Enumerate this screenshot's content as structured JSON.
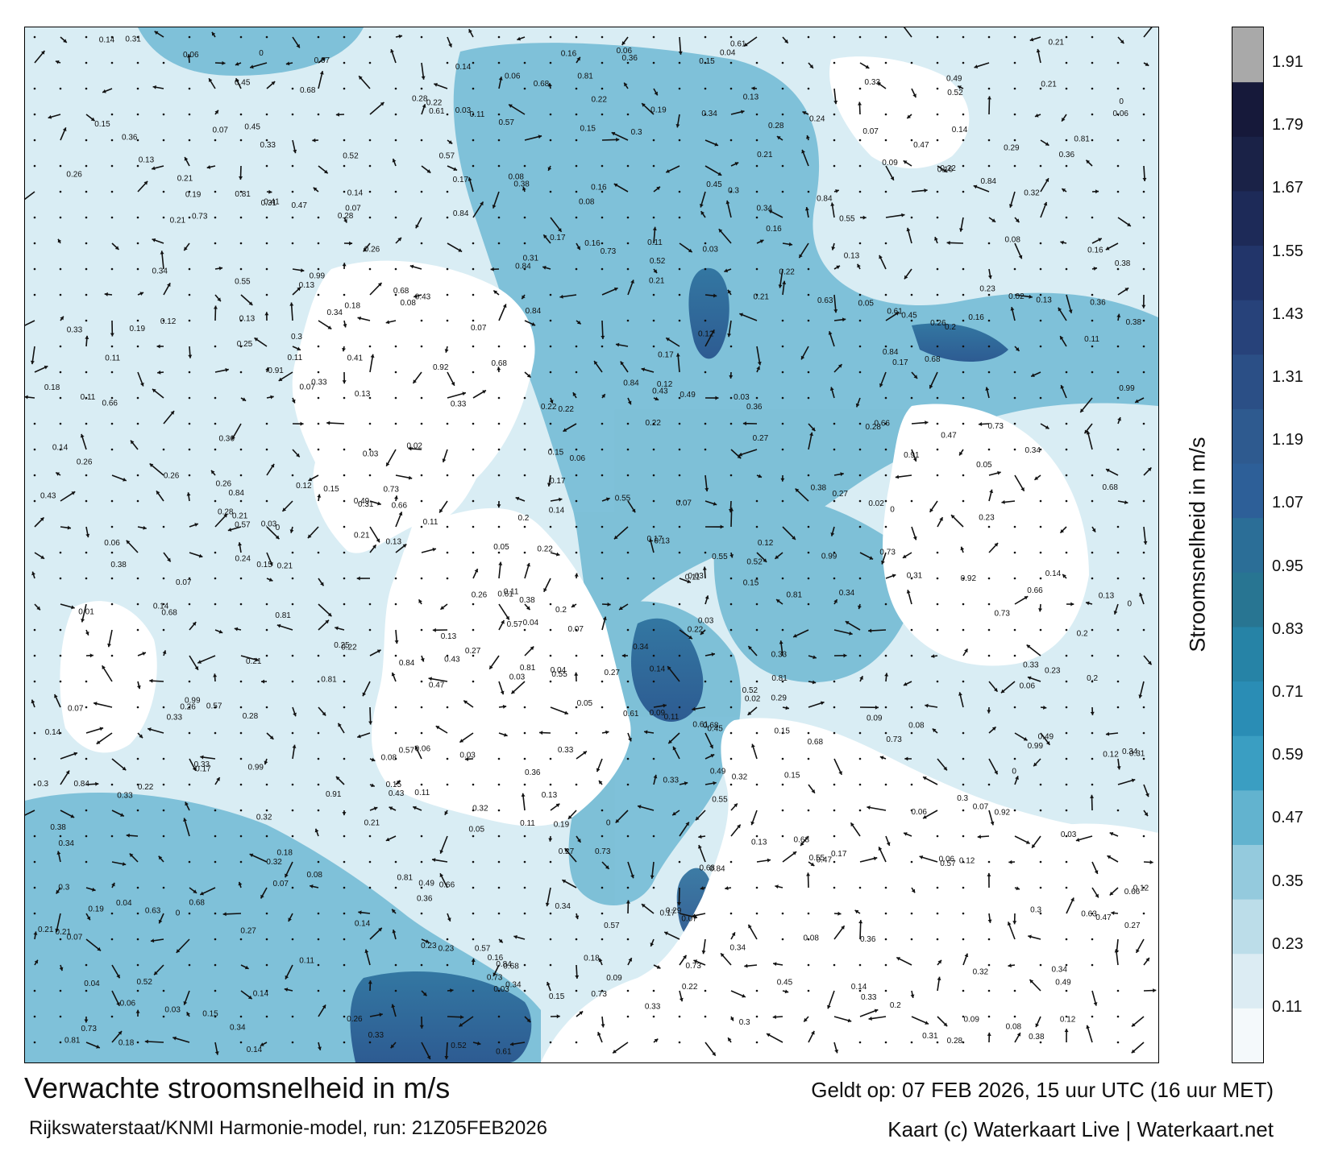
{
  "map": {
    "colorbar": {
      "title": "Stroomsnelheid in m/s",
      "ticks": [
        "1.91",
        "1.79",
        "1.67",
        "1.55",
        "1.43",
        "1.31",
        "1.19",
        "1.07",
        "0.95",
        "0.83",
        "0.71",
        "0.59",
        "0.47",
        "0.35",
        "0.23",
        "0.11"
      ],
      "colors": [
        "#f4f9fb",
        "#dcecf3",
        "#bcdde9",
        "#94cadd",
        "#62b3cf",
        "#3a9ec2",
        "#2a8db5",
        "#2683a6",
        "#287592",
        "#2b6e97",
        "#2d5f98",
        "#2e5a8f",
        "#2b4f86",
        "#27427a",
        "#22356a",
        "#1d2a58",
        "#1a2247",
        "#16193a",
        "#a9a9a9"
      ]
    },
    "land_color": "#ffffff",
    "water_color_light": "#dff0f6",
    "arrow_color": "#111111",
    "sample_values": [
      {
        "v": "0.11"
      },
      {
        "v": "0.05"
      },
      {
        "v": "0.04"
      },
      {
        "v": "0.06"
      },
      {
        "v": "0.08"
      },
      {
        "v": "0.07"
      },
      {
        "v": "0.03"
      },
      {
        "v": "0.09"
      },
      {
        "v": "0.02"
      },
      {
        "v": "0.12"
      },
      {
        "v": "0.14"
      },
      {
        "v": "0.13"
      },
      {
        "v": "0.15"
      },
      {
        "v": "0.16"
      },
      {
        "v": "0.17"
      },
      {
        "v": "0.18"
      },
      {
        "v": "0.19"
      },
      {
        "v": "0.2"
      },
      {
        "v": "0.21"
      },
      {
        "v": "0.22"
      },
      {
        "v": "0.23"
      },
      {
        "v": "0.24"
      },
      {
        "v": "0.25"
      },
      {
        "v": "0.26"
      },
      {
        "v": "0.27"
      },
      {
        "v": "0.28"
      },
      {
        "v": "0.29"
      },
      {
        "v": "0.3"
      },
      {
        "v": "0.31"
      },
      {
        "v": "0.32"
      },
      {
        "v": "0.33"
      },
      {
        "v": "0.34"
      },
      {
        "v": "0.36"
      },
      {
        "v": "0.38"
      },
      {
        "v": "0.41"
      },
      {
        "v": "0.43"
      },
      {
        "v": "0.45"
      },
      {
        "v": "0.47"
      },
      {
        "v": "0.49"
      },
      {
        "v": "0.52"
      },
      {
        "v": "0.55"
      },
      {
        "v": "0.57"
      },
      {
        "v": "0.61"
      },
      {
        "v": "0.63"
      },
      {
        "v": "0.66"
      },
      {
        "v": "0.68"
      },
      {
        "v": "0.73"
      },
      {
        "v": "0.81"
      },
      {
        "v": "0.84"
      },
      {
        "v": "0.91"
      },
      {
        "v": "0.92"
      },
      {
        "v": "0.99"
      },
      {
        "v": "0.01"
      },
      {
        "v": "0"
      }
    ]
  },
  "footer": {
    "title": "Verwachte stroomsnelheid in m/s",
    "source": "Rijkswaterstaat/KNMI Harmonie-model, run: 21Z05FEB2026",
    "valid": "Geldt op: 07 FEB 2026, 15 uur UTC (16 uur MET)",
    "credit": "Kaart (c) Waterkaart Live | Waterkaart.net"
  }
}
